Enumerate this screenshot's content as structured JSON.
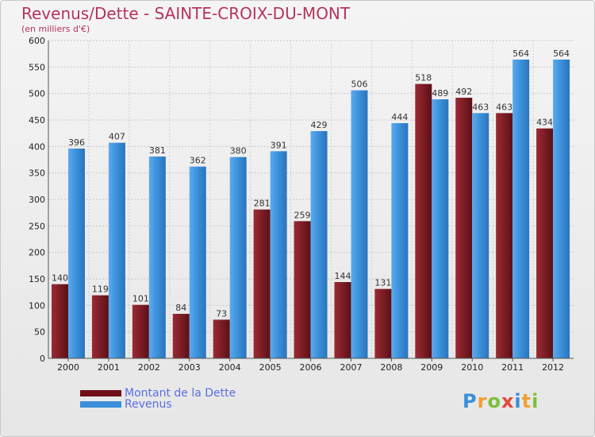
{
  "header": {
    "title": "Revenus/Dette - SAINTE-CROIX-DU-MONT",
    "subtitle": "(en milliers d'€)"
  },
  "colors": {
    "dette": "#8b1e26",
    "revenus": "#3a8fd8"
  },
  "legend": {
    "dette_label": "Montant de la Dette",
    "revenus_label": "Revenus"
  },
  "brand": {
    "text": "Proxiti",
    "letters": [
      "P",
      "r",
      "o",
      "x",
      "i",
      "t",
      "i"
    ]
  },
  "chart_data": {
    "type": "bar",
    "title": "Revenus/Dette - SAINTE-CROIX-DU-MONT",
    "ylabel": "(en milliers d'€)",
    "categories": [
      "2000",
      "2001",
      "2002",
      "2003",
      "2004",
      "2005",
      "2006",
      "2007",
      "2008",
      "2009",
      "2010",
      "2011",
      "2012"
    ],
    "series": [
      {
        "name": "Montant de la Dette",
        "values": [
          140,
          119,
          101,
          84,
          73,
          281,
          259,
          144,
          131,
          518,
          492,
          463,
          434
        ]
      },
      {
        "name": "Revenus",
        "values": [
          396,
          407,
          381,
          362,
          380,
          391,
          429,
          506,
          444,
          489,
          463,
          564,
          564
        ]
      }
    ],
    "ylim": [
      0,
      600
    ],
    "yticks": [
      0,
      50,
      100,
      150,
      200,
      250,
      300,
      350,
      400,
      450,
      500,
      550,
      600
    ],
    "grid": true,
    "legend_position": "bottom-left"
  }
}
